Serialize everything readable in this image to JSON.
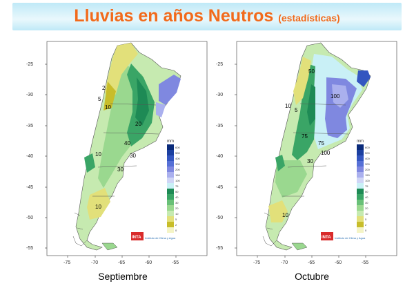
{
  "header": {
    "title": "Lluvias en años Neutros",
    "subtitle": "(estadísticas)"
  },
  "maps": [
    {
      "caption": "Septiembre",
      "contour_labels": [
        "2",
        "5",
        "10",
        "20",
        "40",
        "30",
        "30",
        "10",
        "10"
      ]
    },
    {
      "caption": "Octubre",
      "contour_labels": [
        "10",
        "5",
        "50",
        "75",
        "100",
        "75",
        "100",
        "30",
        "10"
      ]
    }
  ],
  "axes": {
    "lat_ticks": [
      "-25",
      "-30",
      "-35",
      "-40",
      "-45",
      "-50",
      "-55"
    ],
    "lon_ticks": [
      "-75",
      "-70",
      "-65",
      "-60",
      "-55"
    ]
  },
  "legend": {
    "unit": "mm",
    "levels": [
      "600",
      "500",
      "400",
      "300",
      "200",
      "150",
      "100",
      "75",
      "50",
      "40",
      "30",
      "20",
      "10",
      "5",
      "2",
      "0"
    ],
    "colors": [
      "#0a2a7a",
      "#1b3fa0",
      "#3456c0",
      "#5670d6",
      "#7f88e0",
      "#aab0ee",
      "#cfd5f6",
      "#c9f0f6",
      "#1e8a55",
      "#3aa566",
      "#69c078",
      "#9ad88f",
      "#c6eab0",
      "#e2e07a",
      "#c8bd2a",
      "#f4f4c6"
    ]
  },
  "logos": {
    "inta": "INTA",
    "institute": "Instituto de Clima y Agua"
  },
  "colors": {
    "title": "#f26a1b",
    "title_bg": "#bfe9f7"
  }
}
